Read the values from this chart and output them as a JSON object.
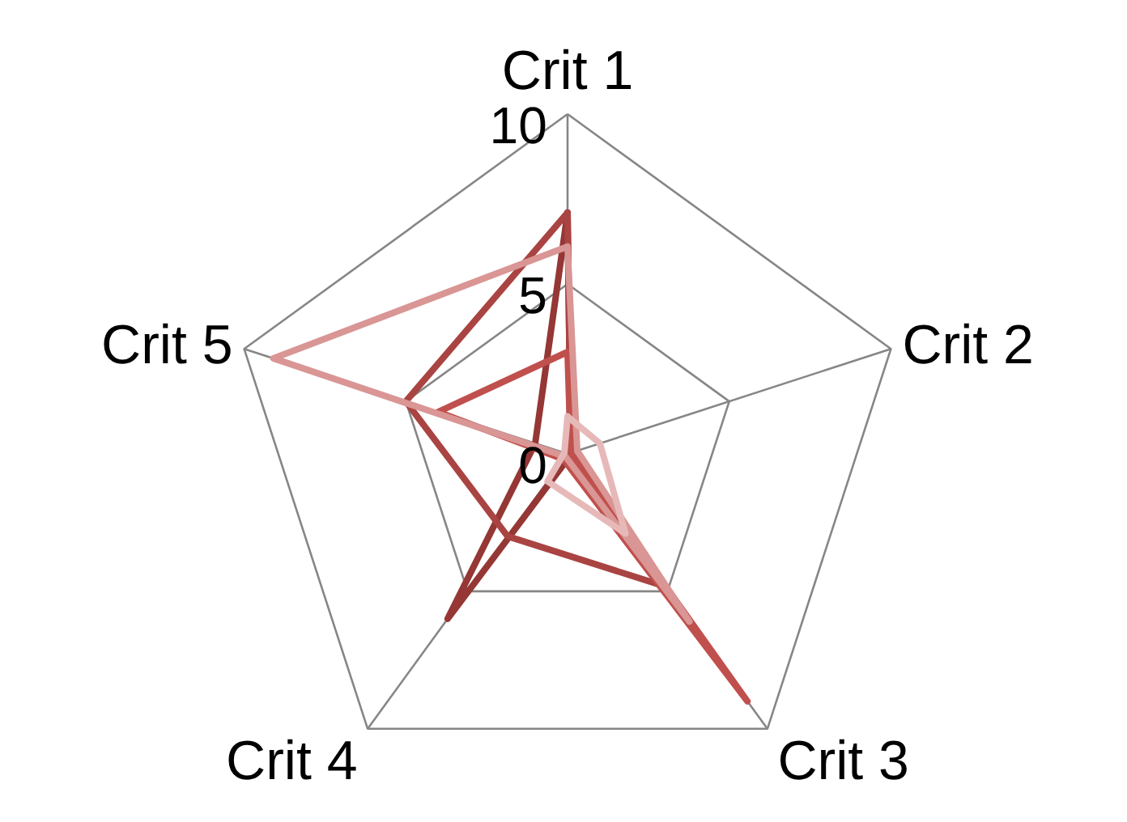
{
  "chart_data": {
    "type": "radar",
    "categories": [
      "Crit 1",
      "Crit 2",
      "Crit 3",
      "Crit 4",
      "Crit 5"
    ],
    "ylim": [
      0,
      10
    ],
    "yticks": [
      0,
      5,
      10
    ],
    "grid": true,
    "series": [
      {
        "color": "#953735",
        "values": [
          7.1,
          0.1,
          0.1,
          6,
          1
        ]
      },
      {
        "color": "#a94442",
        "values": [
          7.1,
          0.1,
          4.8,
          3,
          5
        ]
      },
      {
        "color": "#c0504d",
        "values": [
          3,
          0.1,
          9,
          0.2,
          4
        ]
      },
      {
        "color": "#d99694",
        "values": [
          6.1,
          0.3,
          6.1,
          0.1,
          9.1
        ]
      },
      {
        "color": "#e6b9b8",
        "values": [
          1.1,
          1,
          2.9,
          1,
          0.1
        ]
      }
    ]
  }
}
